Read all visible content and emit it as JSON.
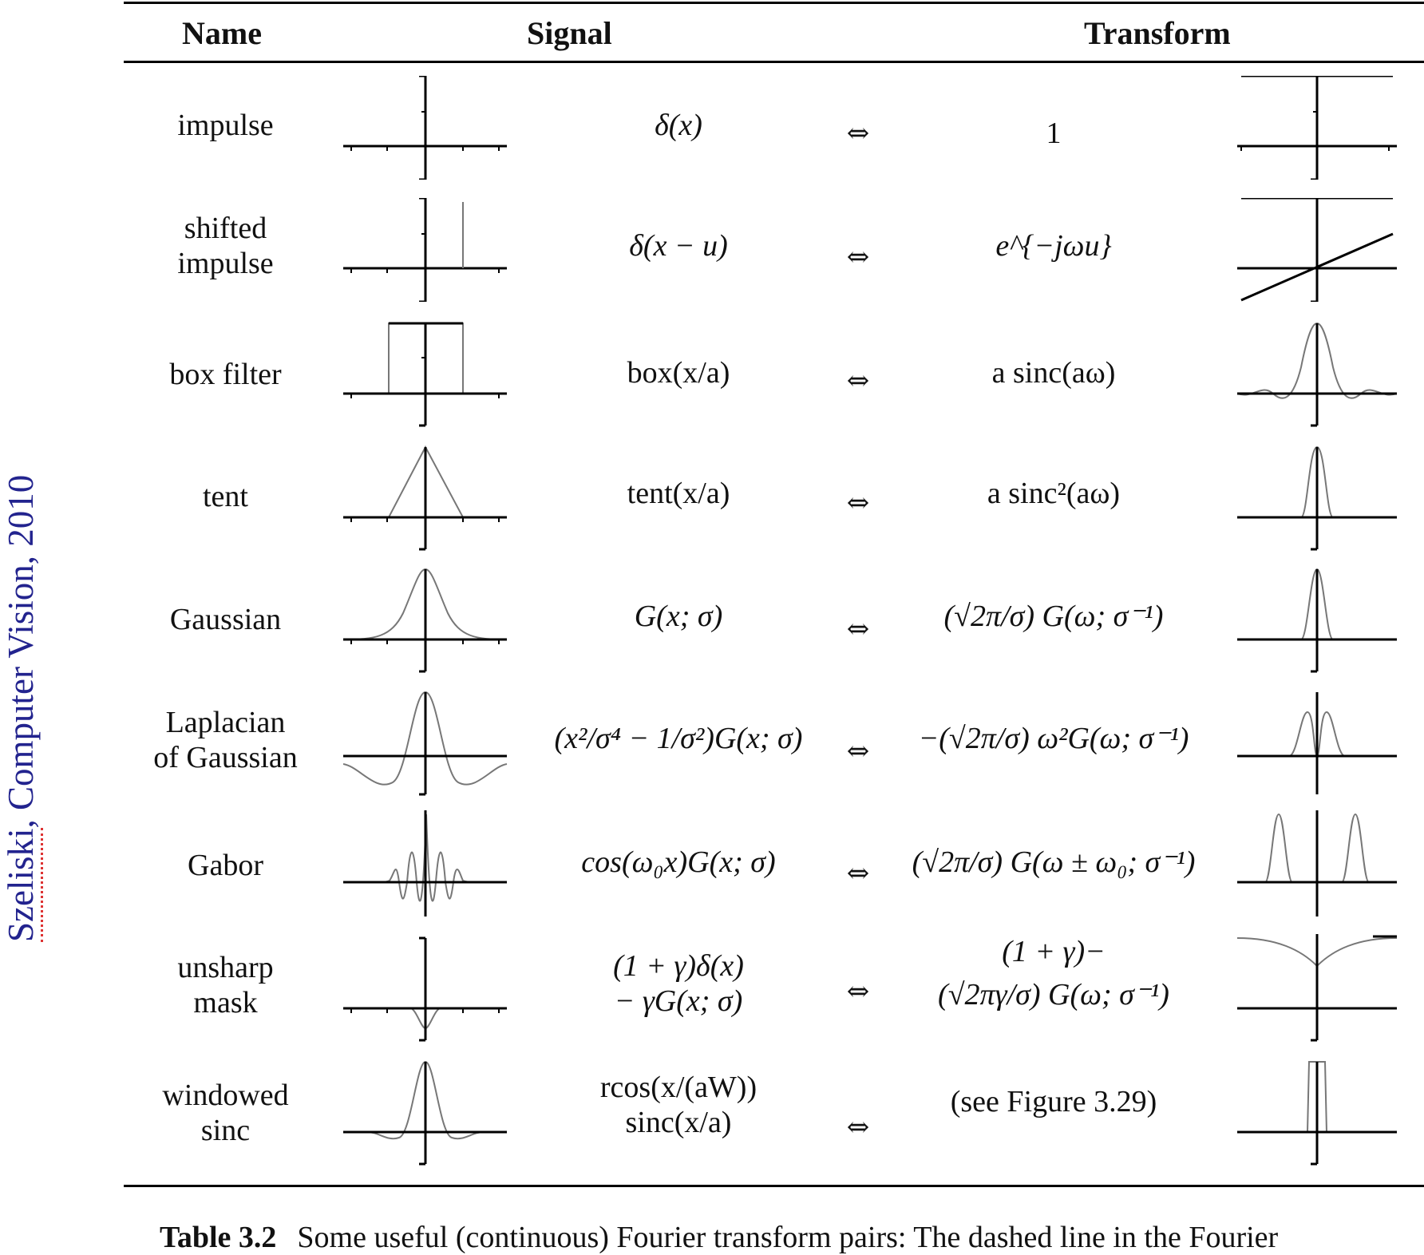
{
  "sidebar": {
    "author": "Szeliski",
    "rest": ", Computer Vision, 2010"
  },
  "headers": {
    "name": "Name",
    "signal": "Signal",
    "transform": "Transform"
  },
  "arrow": "⇔",
  "rows": [
    {
      "name": [
        "impulse"
      ],
      "signal": [
        "δ(x)"
      ],
      "transform": [
        "1"
      ]
    },
    {
      "name": [
        "shifted",
        "impulse"
      ],
      "signal": [
        "δ(x − u)"
      ],
      "transform": [
        "e^{−jωu}"
      ]
    },
    {
      "name": [
        "box filter"
      ],
      "signal": [
        "box(x/a)"
      ],
      "transform": [
        "a sinc(aω)"
      ]
    },
    {
      "name": [
        "tent"
      ],
      "signal": [
        "tent(x/a)"
      ],
      "transform": [
        "a sinc²(aω)"
      ]
    },
    {
      "name": [
        "Gaussian"
      ],
      "signal": [
        "G(x; σ)"
      ],
      "transform": [
        "(√2π/σ) G(ω; σ⁻¹)"
      ]
    },
    {
      "name": [
        "Laplacian",
        "of Gaussian"
      ],
      "signal": [
        "(x²/σ⁴ − 1/σ²)G(x; σ)"
      ],
      "transform": [
        "−(√2π/σ) ω²G(ω; σ⁻¹)"
      ]
    },
    {
      "name": [
        "Gabor"
      ],
      "signal": [
        "cos(ω₀x)G(x; σ)"
      ],
      "transform": [
        "(√2π/σ) G(ω ± ω₀; σ⁻¹)"
      ]
    },
    {
      "name": [
        "unsharp",
        "mask"
      ],
      "signal": [
        "(1 + γ)δ(x)",
        "− γG(x; σ)"
      ],
      "transform": [
        "(1 + γ)−",
        "(√2πγ/σ) G(ω; σ⁻¹)"
      ]
    },
    {
      "name": [
        "windowed",
        "sinc"
      ],
      "signal": [
        "rcos(x/(aW))",
        "sinc(x/a)"
      ],
      "transform": [
        "(see Figure 3.29)"
      ]
    }
  ],
  "caption": {
    "label": "Table 3.2",
    "text": "Some useful (continuous) Fourier transform pairs: The dashed line in the Fourier"
  }
}
